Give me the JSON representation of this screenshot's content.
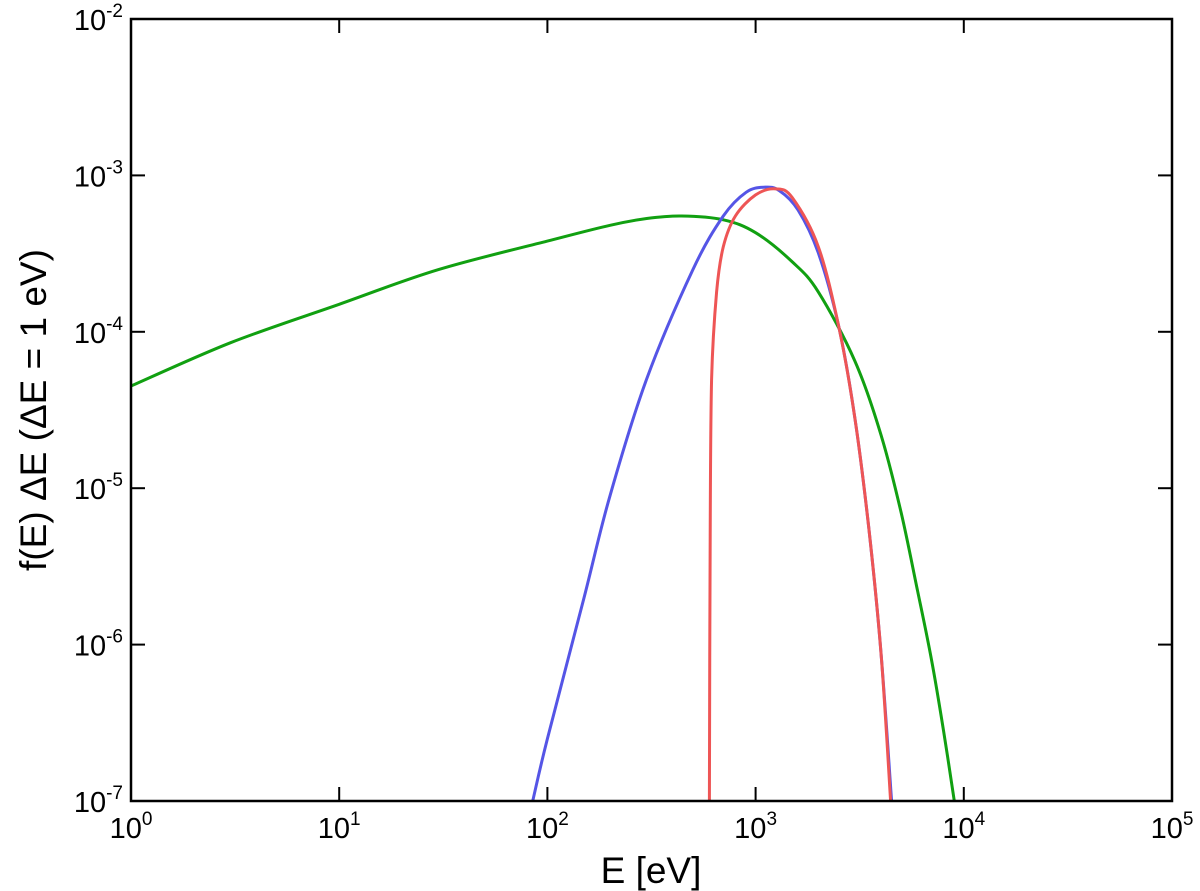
{
  "chart_data": {
    "type": "line",
    "title": "",
    "xlabel": "E [eV]",
    "ylabel": "f(E) ΔE   (ΔE = 1 eV)",
    "xscale": "log",
    "yscale": "log",
    "xlim": [
      1,
      100000
    ],
    "ylim": [
      1e-07,
      0.01
    ],
    "grid": false,
    "x_ticks": [
      {
        "base": "10",
        "exp": "0",
        "value": 1
      },
      {
        "base": "10",
        "exp": "1",
        "value": 10
      },
      {
        "base": "10",
        "exp": "2",
        "value": 100
      },
      {
        "base": "10",
        "exp": "3",
        "value": 1000
      },
      {
        "base": "10",
        "exp": "4",
        "value": 10000
      },
      {
        "base": "10",
        "exp": "5",
        "value": 100000
      }
    ],
    "y_ticks": [
      {
        "base": "10",
        "exp": "-7",
        "value": 1e-07
      },
      {
        "base": "10",
        "exp": "-6",
        "value": 1e-06
      },
      {
        "base": "10",
        "exp": "-5",
        "value": 1e-05
      },
      {
        "base": "10",
        "exp": "-4",
        "value": 0.0001
      },
      {
        "base": "10",
        "exp": "-3",
        "value": 0.001
      },
      {
        "base": "10",
        "exp": "-2",
        "value": 0.01
      }
    ],
    "series": [
      {
        "color": "#11a011",
        "points": [
          [
            1,
            4.5e-05
          ],
          [
            3,
            8.5e-05
          ],
          [
            10,
            0.00015
          ],
          [
            30,
            0.00025
          ],
          [
            100,
            0.00038
          ],
          [
            200,
            0.00048
          ],
          [
            300,
            0.00053
          ],
          [
            440,
            0.00055
          ],
          [
            700,
            0.00052
          ],
          [
            1000,
            0.00043
          ],
          [
            1500,
            0.00028
          ],
          [
            2000,
            0.00018
          ],
          [
            3000,
            6.5e-05
          ],
          [
            4000,
            2.2e-05
          ],
          [
            5000,
            7e-06
          ],
          [
            6000,
            2.2e-06
          ],
          [
            7000,
            8e-07
          ],
          [
            8000,
            2.8e-07
          ],
          [
            9000,
            1e-07
          ]
        ]
      },
      {
        "color": "#5555e6",
        "points": [
          [
            85,
            1e-07
          ],
          [
            100,
            2.5e-07
          ],
          [
            150,
            2e-06
          ],
          [
            200,
            9e-06
          ],
          [
            300,
            5e-05
          ],
          [
            500,
            0.00025
          ],
          [
            700,
            0.00055
          ],
          [
            900,
            0.00078
          ],
          [
            1100,
            0.00084
          ],
          [
            1300,
            0.0008
          ],
          [
            1600,
            0.0006
          ],
          [
            2000,
            0.00032
          ],
          [
            2500,
            0.00011
          ],
          [
            3000,
            2.8e-05
          ],
          [
            3500,
            5.5e-06
          ],
          [
            4000,
            9e-07
          ],
          [
            4500,
            1e-07
          ]
        ]
      },
      {
        "color": "#ee5555",
        "points": [
          [
            600,
            1e-07
          ],
          [
            605,
            5e-06
          ],
          [
            615,
            5e-05
          ],
          [
            650,
            0.00018
          ],
          [
            700,
            0.00035
          ],
          [
            800,
            0.00055
          ],
          [
            1000,
            0.00075
          ],
          [
            1250,
            0.00082
          ],
          [
            1500,
            0.00072
          ],
          [
            2000,
            0.00035
          ],
          [
            2500,
            0.00011
          ],
          [
            3000,
            2.8e-05
          ],
          [
            3500,
            5.5e-06
          ],
          [
            4000,
            9e-07
          ],
          [
            4450,
            1e-07
          ]
        ]
      }
    ]
  }
}
